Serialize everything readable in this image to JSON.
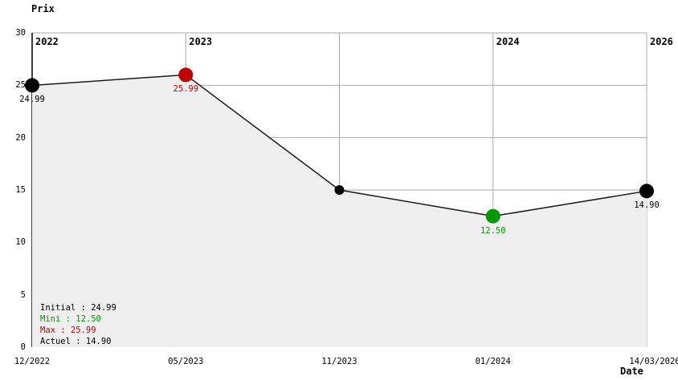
{
  "chart_data": {
    "type": "line",
    "ylabel": "Prix",
    "xlabel": "Date",
    "ylim": [
      0,
      30
    ],
    "y_ticks": [
      30,
      25,
      20,
      15,
      10,
      5,
      0
    ],
    "grid": true,
    "area_fill": true,
    "x": [
      "12/2022",
      "05/2023",
      "11/2023",
      "01/2024",
      "14/03/2026"
    ],
    "year_markers": [
      {
        "index": 0,
        "label": "2022"
      },
      {
        "index": 1,
        "label": "2023"
      },
      {
        "index": 3,
        "label": "2024"
      },
      {
        "index": 4,
        "label": "2026"
      }
    ],
    "series": [
      {
        "name": "Prix",
        "values": [
          24.99,
          25.99,
          15.0,
          12.5,
          14.9
        ]
      }
    ],
    "points": [
      {
        "x": "12/2022",
        "y": 24.99,
        "label": "24.99",
        "color": "#000000",
        "size": "large"
      },
      {
        "x": "05/2023",
        "y": 25.99,
        "label": "25.99",
        "color": "#c00000",
        "size": "large"
      },
      {
        "x": "11/2023",
        "y": 15.0,
        "label": "",
        "color": "#000000",
        "size": "small"
      },
      {
        "x": "01/2024",
        "y": 12.5,
        "label": "12.50",
        "color": "#009900",
        "size": "large"
      },
      {
        "x": "14/03/2026",
        "y": 14.9,
        "label": "14.90",
        "color": "#000000",
        "size": "large"
      }
    ],
    "legend": [
      {
        "label": "Initial",
        "value": "24.99",
        "color": "#000000"
      },
      {
        "label": "Mini",
        "value": "12.50",
        "color": "#009900"
      },
      {
        "label": "Max",
        "value": "25.99",
        "color": "#c00000"
      },
      {
        "label": "Actuel",
        "value": "14.90",
        "color": "#000000"
      }
    ],
    "legend_separator": " : ",
    "colors": {
      "grid": "#aaaaaa",
      "axis": "#000000",
      "line": "#1a1a1a",
      "fill": "#efefef",
      "max": "#c00000",
      "min": "#009900",
      "default": "#000000"
    }
  }
}
